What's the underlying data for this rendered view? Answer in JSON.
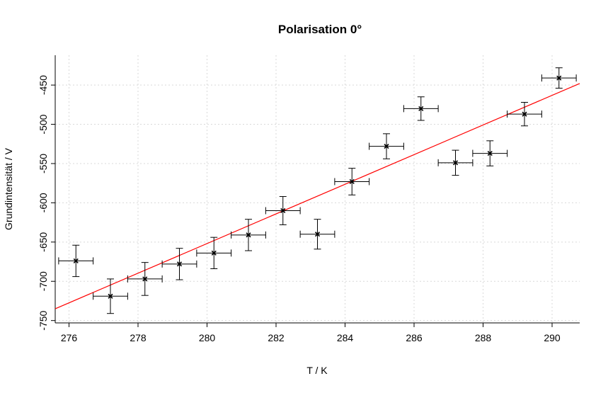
{
  "chart_data": {
    "type": "scatter",
    "title": "Polarisation 0°",
    "xlabel": "T / K",
    "ylabel": "Grundintensität / V",
    "xlim": [
      275.6,
      290.8
    ],
    "ylim": [
      -753,
      -412
    ],
    "xticks": [
      276,
      278,
      280,
      282,
      284,
      286,
      288,
      290
    ],
    "yticks": [
      -750,
      -700,
      -650,
      -600,
      -550,
      -500,
      -450
    ],
    "grid": true,
    "series": [
      {
        "points": [
          {
            "x": 276.2,
            "y": -674,
            "xerr": 0.5,
            "yerr": 20
          },
          {
            "x": 277.2,
            "y": -719,
            "xerr": 0.5,
            "yerr": 22
          },
          {
            "x": 278.2,
            "y": -697,
            "xerr": 0.5,
            "yerr": 21
          },
          {
            "x": 279.2,
            "y": -678,
            "xerr": 0.5,
            "yerr": 20
          },
          {
            "x": 280.2,
            "y": -664,
            "xerr": 0.5,
            "yerr": 20
          },
          {
            "x": 281.2,
            "y": -641,
            "xerr": 0.5,
            "yerr": 20
          },
          {
            "x": 282.2,
            "y": -610,
            "xerr": 0.5,
            "yerr": 18
          },
          {
            "x": 283.2,
            "y": -640,
            "xerr": 0.5,
            "yerr": 19
          },
          {
            "x": 284.2,
            "y": -573,
            "xerr": 0.5,
            "yerr": 17
          },
          {
            "x": 285.2,
            "y": -528,
            "xerr": 0.5,
            "yerr": 16
          },
          {
            "x": 286.2,
            "y": -480,
            "xerr": 0.5,
            "yerr": 15
          },
          {
            "x": 287.2,
            "y": -549,
            "xerr": 0.5,
            "yerr": 16
          },
          {
            "x": 288.2,
            "y": -537,
            "xerr": 0.5,
            "yerr": 16
          },
          {
            "x": 289.2,
            "y": -487,
            "xerr": 0.5,
            "yerr": 15
          },
          {
            "x": 290.2,
            "y": -441,
            "xerr": 0.5,
            "yerr": 13
          }
        ]
      }
    ],
    "fit_line": {
      "x1": 275.6,
      "y1": -735,
      "x2": 290.8,
      "y2": -448,
      "color": "#ff0000"
    }
  }
}
